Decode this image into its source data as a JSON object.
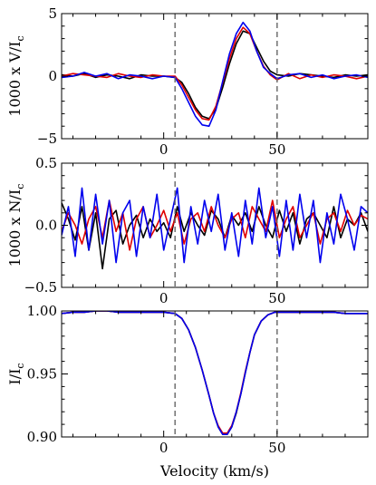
{
  "chart_data": [
    {
      "type": "line",
      "ylabel": "1000 x V/I",
      "ylabel_sub": "c",
      "xlim": [
        -45,
        90
      ],
      "ylim": [
        -5,
        5
      ],
      "xticks": [
        0,
        50
      ],
      "yticks": [
        -5,
        0,
        5
      ],
      "vlines": [
        5,
        50
      ],
      "x": [
        -45,
        -40,
        -35,
        -30,
        -25,
        -20,
        -15,
        -10,
        -5,
        0,
        5,
        8,
        11,
        14,
        17,
        20,
        23,
        26,
        29,
        32,
        35,
        38,
        41,
        44,
        47,
        50,
        55,
        60,
        65,
        70,
        75,
        80,
        85,
        90
      ],
      "series": [
        {
          "color": "#000000",
          "values": [
            0.1,
            0.0,
            0.2,
            -0.1,
            0.1,
            0.0,
            -0.2,
            0.1,
            0.0,
            0.0,
            -0.1,
            -0.5,
            -1.4,
            -2.5,
            -3.2,
            -3.4,
            -2.6,
            -0.9,
            1.0,
            2.6,
            3.6,
            3.4,
            2.3,
            1.2,
            0.4,
            0.1,
            0.0,
            0.2,
            0.1,
            0.0,
            -0.1,
            0.1,
            0.0,
            0.1
          ]
        },
        {
          "color": "#e00000",
          "values": [
            0.0,
            0.2,
            0.1,
            0.0,
            -0.1,
            0.2,
            0.0,
            -0.1,
            0.1,
            0.0,
            0.0,
            -0.7,
            -1.7,
            -2.7,
            -3.4,
            -3.5,
            -2.4,
            -0.5,
            1.4,
            3.0,
            3.9,
            3.4,
            2.0,
            0.8,
            0.1,
            -0.3,
            0.2,
            -0.2,
            0.1,
            -0.1,
            0.1,
            0.0,
            -0.2,
            0.0
          ]
        },
        {
          "color": "#0000ee",
          "values": [
            -0.1,
            0.0,
            0.3,
            0.0,
            0.2,
            -0.2,
            0.1,
            0.0,
            -0.2,
            0.0,
            -0.1,
            -1.0,
            -2.1,
            -3.2,
            -3.9,
            -4.0,
            -2.7,
            -0.4,
            1.8,
            3.4,
            4.3,
            3.6,
            2.0,
            0.7,
            0.2,
            -0.2,
            0.1,
            0.2,
            -0.1,
            0.1,
            -0.2,
            0.0,
            0.1,
            -0.1
          ]
        }
      ]
    },
    {
      "type": "line",
      "ylabel": "1000 x N/I",
      "ylabel_sub": "c",
      "xlim": [
        -45,
        90
      ],
      "ylim": [
        -0.5,
        0.5
      ],
      "xticks": [
        0,
        50
      ],
      "yticks": [
        -0.5,
        0.0,
        0.5
      ],
      "ytick_labels": [
        "−0.5",
        "0.0",
        "0.5"
      ],
      "vlines": [
        5,
        50
      ],
      "x": [
        -45,
        -42,
        -39,
        -36,
        -33,
        -30,
        -27,
        -24,
        -21,
        -18,
        -15,
        -12,
        -9,
        -6,
        -3,
        0,
        3,
        6,
        9,
        12,
        15,
        18,
        21,
        24,
        27,
        30,
        33,
        36,
        39,
        42,
        45,
        48,
        51,
        54,
        57,
        60,
        63,
        66,
        69,
        72,
        75,
        78,
        81,
        84,
        87,
        90
      ],
      "series": [
        {
          "color": "#000000",
          "values": [
            0.18,
            0.05,
            -0.12,
            0.15,
            -0.2,
            0.1,
            -0.35,
            0.05,
            0.12,
            -0.15,
            0.0,
            0.08,
            -0.1,
            0.05,
            -0.05,
            0.02,
            -0.1,
            0.15,
            -0.05,
            0.1,
            0.0,
            -0.08,
            0.12,
            0.05,
            -0.1,
            0.08,
            0.0,
            0.1,
            -0.05,
            0.15,
            0.0,
            -0.1,
            0.12,
            -0.05,
            0.1,
            -0.15,
            0.05,
            0.1,
            0.0,
            -0.1,
            0.15,
            -0.1,
            0.05,
            0.0,
            0.1,
            -0.05
          ]
        },
        {
          "color": "#e00000",
          "values": [
            -0.05,
            0.1,
            0.0,
            -0.15,
            0.05,
            0.15,
            -0.1,
            0.2,
            -0.05,
            0.1,
            -0.2,
            0.05,
            0.15,
            -0.1,
            0.0,
            0.12,
            -0.05,
            0.1,
            -0.15,
            0.05,
            0.1,
            -0.05,
            0.15,
            0.0,
            -0.1,
            0.05,
            0.1,
            -0.1,
            0.15,
            0.05,
            -0.05,
            0.2,
            -0.1,
            0.05,
            0.15,
            -0.1,
            0.0,
            0.1,
            -0.15,
            0.05,
            0.1,
            -0.05,
            0.12,
            0.0,
            0.08,
            0.05
          ]
        },
        {
          "color": "#0000ee",
          "values": [
            -0.08,
            0.15,
            -0.25,
            0.3,
            -0.2,
            0.25,
            -0.15,
            0.2,
            -0.3,
            0.1,
            0.2,
            -0.25,
            0.15,
            -0.1,
            0.25,
            -0.2,
            0.05,
            0.3,
            -0.3,
            0.15,
            -0.15,
            0.2,
            -0.05,
            0.25,
            -0.2,
            0.1,
            -0.25,
            0.2,
            -0.15,
            0.3,
            -0.1,
            0.15,
            -0.25,
            0.2,
            -0.2,
            0.25,
            -0.1,
            0.2,
            -0.3,
            0.1,
            -0.15,
            0.25,
            0.05,
            -0.2,
            0.15,
            0.1
          ]
        }
      ]
    },
    {
      "type": "line",
      "ylabel": "I/I",
      "ylabel_sub": "c",
      "xlabel": "Velocity (km/s)",
      "xlim": [
        -45,
        90
      ],
      "ylim": [
        0.9,
        1.0
      ],
      "xticks": [
        0,
        50
      ],
      "yticks": [
        0.9,
        0.95,
        1.0
      ],
      "ytick_labels": [
        "0.90",
        "0.95",
        "1.00"
      ],
      "vlines": [
        5,
        50
      ],
      "x": [
        -45,
        -40,
        -35,
        -30,
        -25,
        -20,
        -15,
        -10,
        -5,
        0,
        5,
        8,
        11,
        14,
        17,
        20,
        22,
        24,
        26,
        28,
        30,
        32,
        34,
        36,
        38,
        40,
        43,
        46,
        49,
        52,
        55,
        60,
        65,
        70,
        75,
        80,
        85,
        90
      ],
      "series": [
        {
          "color": "#000000",
          "values": [
            0.998,
            0.999,
            0.999,
            1.0,
            1.0,
            0.999,
            0.999,
            0.999,
            0.999,
            0.999,
            0.998,
            0.994,
            0.985,
            0.971,
            0.953,
            0.933,
            0.919,
            0.908,
            0.902,
            0.902,
            0.908,
            0.919,
            0.934,
            0.951,
            0.967,
            0.981,
            0.992,
            0.997,
            0.999,
            0.999,
            0.999,
            0.999,
            0.999,
            0.999,
            0.999,
            0.998,
            0.998,
            0.998
          ]
        },
        {
          "color": "#e00000",
          "values": [
            0.998,
            0.999,
            0.999,
            1.0,
            1.0,
            0.999,
            0.999,
            0.999,
            0.999,
            0.999,
            0.998,
            0.994,
            0.985,
            0.971,
            0.953,
            0.933,
            0.919,
            0.909,
            0.903,
            0.903,
            0.909,
            0.92,
            0.935,
            0.952,
            0.967,
            0.981,
            0.992,
            0.997,
            0.999,
            0.999,
            0.999,
            0.999,
            0.999,
            0.999,
            0.999,
            0.998,
            0.998,
            0.998
          ]
        },
        {
          "color": "#0000ee",
          "values": [
            0.998,
            0.999,
            0.999,
            1.0,
            1.0,
            0.999,
            0.999,
            0.999,
            0.999,
            0.999,
            0.998,
            0.994,
            0.985,
            0.971,
            0.953,
            0.933,
            0.919,
            0.908,
            0.902,
            0.902,
            0.908,
            0.92,
            0.934,
            0.951,
            0.967,
            0.981,
            0.992,
            0.997,
            0.999,
            0.999,
            0.999,
            0.999,
            0.999,
            0.999,
            0.999,
            0.998,
            0.998,
            0.998
          ]
        }
      ]
    }
  ]
}
